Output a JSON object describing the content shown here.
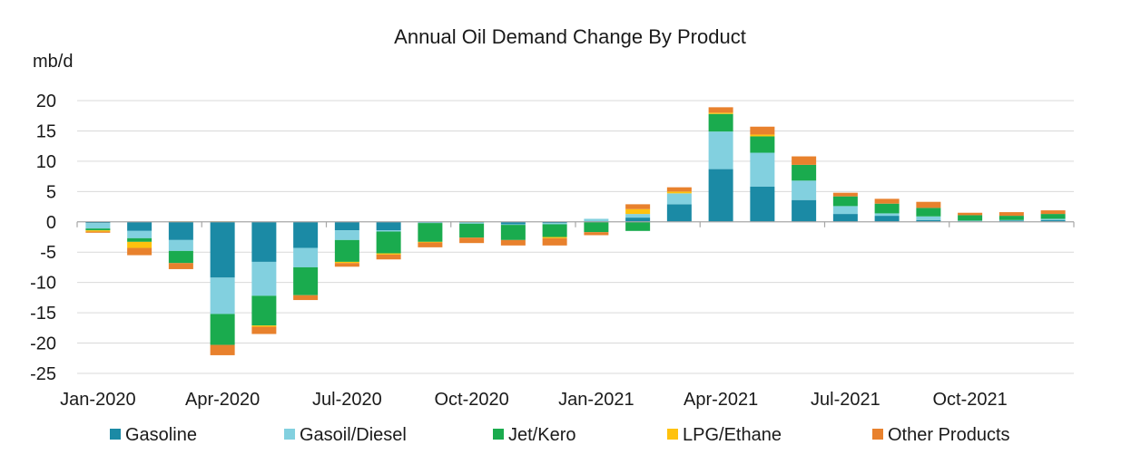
{
  "chart_data": {
    "type": "bar",
    "stacked": true,
    "title": "Annual Oil Demand Change By Product",
    "ylabel": "mb/d",
    "xlabel": "",
    "ylim": [
      -25,
      20
    ],
    "yticks": [
      20,
      15,
      10,
      5,
      0,
      -5,
      -10,
      -15,
      -20,
      -25
    ],
    "grid": true,
    "legend_position": "bottom",
    "categories": [
      "Jan-2020",
      "Feb-2020",
      "Mar-2020",
      "Apr-2020",
      "May-2020",
      "Jun-2020",
      "Jul-2020",
      "Aug-2020",
      "Sep-2020",
      "Oct-2020",
      "Nov-2020",
      "Dec-2020",
      "Jan-2021",
      "Feb-2021",
      "Mar-2021",
      "Apr-2021",
      "May-2021",
      "Jun-2021",
      "Jul-2021",
      "Aug-2021",
      "Sep-2021",
      "Oct-2021",
      "Nov-2021",
      "Dec-2021"
    ],
    "x_tick_labels": [
      "Jan-2020",
      "Apr-2020",
      "Jul-2020",
      "Oct-2020",
      "Jan-2021",
      "Apr-2021",
      "Jul-2021",
      "Oct-2021"
    ],
    "series": [
      {
        "name": "Gasoline",
        "color": "#1b8aa5",
        "values": [
          -0.2,
          -1.5,
          -3.0,
          -9.2,
          -6.6,
          -4.3,
          -1.4,
          -1.4,
          -0.1,
          -0.1,
          -0.4,
          -0.2,
          0.1,
          0.7,
          2.9,
          8.7,
          5.8,
          3.6,
          1.3,
          1.0,
          0.3,
          0.1,
          0.2,
          0.3
        ]
      },
      {
        "name": "Gasoil/Diesel",
        "color": "#82d0df",
        "values": [
          -0.9,
          -1.2,
          -1.8,
          -6.0,
          -5.6,
          -3.2,
          -1.6,
          -0.2,
          -0.1,
          -0.2,
          -0.1,
          -0.2,
          0.4,
          0.6,
          1.8,
          6.2,
          5.6,
          3.2,
          1.3,
          0.4,
          0.6,
          0.1,
          0.1,
          0.2
        ]
      },
      {
        "name": "Jet/Kero",
        "color": "#1aab4e",
        "values": [
          -0.3,
          -0.6,
          -2.0,
          -5.1,
          -4.9,
          -4.6,
          -3.6,
          -3.6,
          -3.1,
          -2.3,
          -2.5,
          -2.1,
          -1.7,
          -1.5,
          0.0,
          2.9,
          2.7,
          2.6,
          1.6,
          1.6,
          1.4,
          0.9,
          0.7,
          0.8
        ]
      },
      {
        "name": "LPG/Ethane",
        "color": "#ffc20e",
        "values": [
          -0.2,
          -1.0,
          0.1,
          0.1,
          -0.2,
          0.0,
          -0.2,
          -0.2,
          -0.1,
          0.1,
          0.0,
          -0.2,
          0.0,
          0.8,
          0.3,
          0.2,
          0.3,
          0.0,
          0.0,
          0.0,
          0.0,
          0.0,
          0.0,
          0.0
        ]
      },
      {
        "name": "Other Products",
        "color": "#e8812d",
        "values": [
          -0.2,
          -1.2,
          -1.0,
          -1.7,
          -1.2,
          -0.8,
          -0.6,
          -0.8,
          -0.8,
          -0.9,
          -0.9,
          -1.2,
          -0.5,
          0.8,
          0.7,
          0.9,
          1.3,
          1.4,
          0.6,
          0.8,
          1.0,
          0.4,
          0.6,
          0.6
        ]
      }
    ]
  }
}
